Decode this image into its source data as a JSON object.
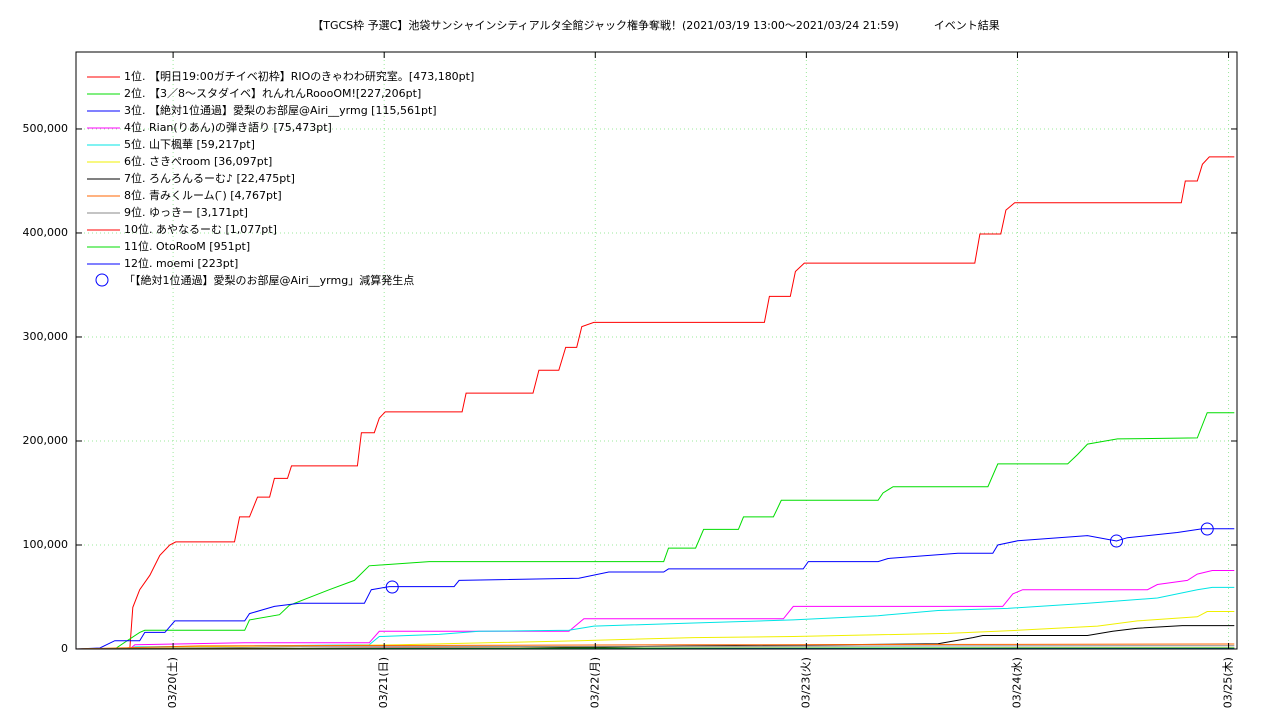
{
  "chart_data": {
    "type": "line",
    "title": "【TGCS枠 予選C】池袋サンシャインシティアルタ全館ジャック権争奪戦！(2021/03/19 13:00〜2021/03/24 21:59)          イベント結果",
    "xlim": [
      0.54,
      6.04
    ],
    "ylim": [
      0,
      574000
    ],
    "xticks": [
      {
        "value": 1,
        "label": "03/20(土)"
      },
      {
        "value": 2,
        "label": "03/21(日)"
      },
      {
        "value": 3,
        "label": "03/22(月)"
      },
      {
        "value": 4,
        "label": "03/23(火)"
      },
      {
        "value": 5,
        "label": "03/24(水)"
      },
      {
        "value": 6,
        "label": "03/25(木)"
      }
    ],
    "yticks": [
      0,
      {
        "value": 100000,
        "label": "100,000"
      },
      {
        "value": 200000,
        "label": "200,000"
      },
      {
        "value": 300000,
        "label": "300,000"
      },
      {
        "value": 400000,
        "label": "400,000"
      },
      {
        "value": 500000,
        "label": "500,000"
      }
    ],
    "grid": true,
    "legend": "top-left",
    "series": [
      {
        "name": "1位. 【明日19:00ガチイベ初枠】RIOのきゃわわ研究室。[473,180pt]",
        "color": "#ff0000",
        "x": [
          0.54,
          0.795,
          0.809,
          0.842,
          0.89,
          0.937,
          0.984,
          1.013,
          1.291,
          1.315,
          1.362,
          1.4,
          1.457,
          1.48,
          1.542,
          1.561,
          1.873,
          1.892,
          1.953,
          1.977,
          2.005,
          2.369,
          2.388,
          2.705,
          2.733,
          2.827,
          2.86,
          2.912,
          2.936,
          2.993,
          3.801,
          3.825,
          3.924,
          3.948,
          3.99,
          4.798,
          4.822,
          4.921,
          4.945,
          4.987,
          5.776,
          5.795,
          5.852,
          5.876,
          5.909,
          6.027
        ],
        "values": [
          0,
          0,
          40000,
          57000,
          71000,
          90000,
          100000,
          103000,
          103000,
          127000,
          127000,
          146000,
          146000,
          164000,
          164000,
          176000,
          176000,
          208000,
          208000,
          222000,
          228000,
          228000,
          246000,
          246000,
          268000,
          268000,
          290000,
          290000,
          310000,
          314000,
          314000,
          339000,
          339000,
          363000,
          371000,
          371000,
          399000,
          399000,
          422000,
          429000,
          429000,
          450000,
          450000,
          466000,
          473180,
          473180
        ]
      },
      {
        "name": "2位. 【3／8〜スタダイベ】れんれんRoooOM![227,206pt]",
        "color": "#00dd00",
        "x": [
          0.54,
          0.724,
          0.842,
          0.866,
          1.339,
          1.362,
          1.504,
          1.551,
          1.74,
          1.859,
          1.929,
          2.213,
          3.324,
          3.347,
          3.475,
          3.513,
          3.678,
          3.702,
          3.844,
          3.881,
          4.34,
          4.363,
          4.411,
          4.86,
          4.907,
          5.238,
          5.285,
          5.332,
          5.474,
          5.852,
          5.899,
          6.027
        ],
        "values": [
          0,
          0,
          16000,
          18000,
          18000,
          28000,
          33000,
          42000,
          57000,
          66000,
          80000,
          84000,
          84000,
          97000,
          97000,
          115000,
          115000,
          127000,
          127000,
          143000,
          143000,
          150000,
          156000,
          156000,
          178000,
          178000,
          187000,
          197000,
          202000,
          203000,
          227206,
          227206
        ]
      },
      {
        "name": "3位. 【絶対1位通過】愛梨のお部屋@Airi__yrmg [115,561pt]",
        "color": "#0000ff",
        "x": [
          0.54,
          0.653,
          0.724,
          0.842,
          0.866,
          0.961,
          1.008,
          1.339,
          1.362,
          1.48,
          1.599,
          1.906,
          1.939,
          2.024,
          2.331,
          2.355,
          2.922,
          3.064,
          3.324,
          3.347,
          3.985,
          4.009,
          4.34,
          4.387,
          4.718,
          4.883,
          4.907,
          5.001,
          5.332,
          5.469,
          5.521,
          5.757,
          5.876,
          6.027
        ],
        "values": [
          0,
          1000,
          8000,
          8000,
          16000,
          16000,
          27000,
          27000,
          34000,
          41000,
          44000,
          44000,
          57000,
          60000,
          60000,
          66000,
          68000,
          74000,
          74000,
          77000,
          77000,
          84000,
          84000,
          87000,
          92000,
          92000,
          100000,
          104000,
          109000,
          103800,
          107000,
          112000,
          115561,
          115561
        ]
      },
      {
        "name": "4位. Rian(りあん)の弾き語り [75,473pt]",
        "color": "#ff00ff",
        "x": [
          0.54,
          0.795,
          0.819,
          1.339,
          1.929,
          1.977,
          2.875,
          2.946,
          3.891,
          3.938,
          4.93,
          4.978,
          5.025,
          5.616,
          5.663,
          5.805,
          5.852,
          5.923,
          6.027
        ],
        "values": [
          0,
          0,
          4000,
          6000,
          6000,
          17000,
          17000,
          29000,
          29000,
          41000,
          41000,
          53000,
          57000,
          57000,
          62000,
          66000,
          72000,
          75473,
          75473
        ]
      },
      {
        "name": "5位. 山下楓華 [59,217pt]",
        "color": "#00e5e5",
        "x": [
          0.54,
          0.795,
          0.819,
          1.929,
          1.977,
          2.26,
          2.449,
          2.875,
          2.993,
          3.466,
          3.938,
          4.34,
          4.624,
          4.955,
          5.332,
          5.663,
          5.852,
          5.923,
          6.027
        ],
        "values": [
          0,
          0,
          2000,
          4000,
          12000,
          14000,
          17000,
          18000,
          22000,
          25000,
          28000,
          32000,
          37000,
          39000,
          44000,
          49000,
          57000,
          59217,
          59217
        ]
      },
      {
        "name": "6位. さきぺroom [36,097pt]",
        "color": "#f0f000",
        "x": [
          0.54,
          0.984,
          2.071,
          2.922,
          3.466,
          3.938,
          4.671,
          5.001,
          5.379,
          5.568,
          5.852,
          5.899,
          6.027
        ],
        "values": [
          0,
          2000,
          4000,
          8000,
          11000,
          12000,
          15000,
          18000,
          22000,
          27000,
          31000,
          36097,
          36097
        ]
      },
      {
        "name": "7位. ろんろんるーむ♪ [22,475pt]",
        "color": "#000000",
        "x": [
          0.54,
          2.638,
          3.466,
          4.624,
          4.789,
          4.836,
          5.332,
          5.451,
          5.568,
          5.781,
          6.027
        ],
        "values": [
          0,
          1000,
          3000,
          5000,
          11000,
          13000,
          13000,
          17000,
          20000,
          22475,
          22475
        ]
      },
      {
        "name": "8位. 青みくルーム( ̄) [4,767pt]",
        "color": "#ff6600",
        "x": [
          0.54,
          1.126,
          3.466,
          6.027
        ],
        "values": [
          0,
          3000,
          4000,
          4767
        ]
      },
      {
        "name": "9位. ゆっきー [3,171pt]",
        "color": "#888888",
        "x": [
          0.54,
          1.599,
          4.907,
          6.027
        ],
        "values": [
          0,
          2000,
          3000,
          3171
        ]
      },
      {
        "name": "10位. あやなるーむ [1,077pt]",
        "color": "#ff0000",
        "x": [
          0.54,
          2.544,
          6.027
        ],
        "values": [
          0,
          1000,
          1077
        ]
      },
      {
        "name": "11位. OtoRooM [951pt]",
        "color": "#00dd00",
        "x": [
          0.54,
          2.993,
          6.027
        ],
        "values": [
          0,
          900,
          951
        ]
      },
      {
        "name": "12位. moemi [223pt]",
        "color": "#0000ff",
        "x": [
          0.54,
          3.938,
          6.027
        ],
        "values": [
          0,
          223,
          223
        ]
      },
      {
        "name": "「【絶対1位通過】愛梨のお部屋@Airi__yrmg」減算発生点",
        "color": "#0000ff",
        "marker": "circle",
        "x": [
          2.038,
          5.469,
          5.899
        ],
        "values": [
          59600,
          103800,
          115400
        ]
      }
    ]
  }
}
